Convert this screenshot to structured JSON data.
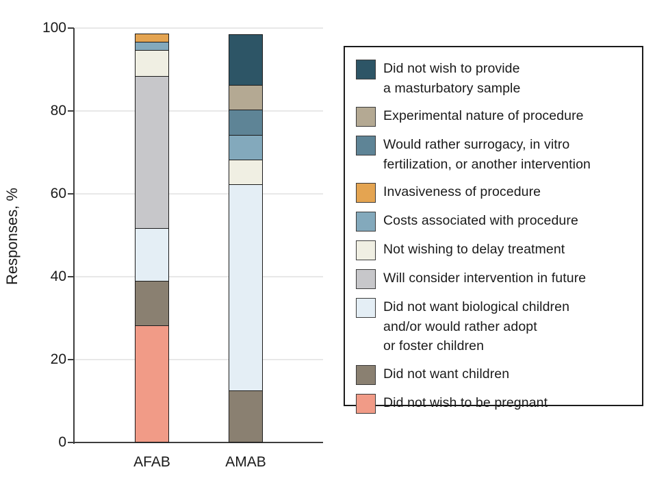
{
  "figure": {
    "y_axis_title": "Responses, %"
  },
  "chart_data": {
    "type": "bar",
    "stacked": true,
    "title": "",
    "xlabel": "",
    "ylabel": "Responses, %",
    "ylim": [
      0,
      100
    ],
    "yticks": [
      0,
      20,
      40,
      60,
      80,
      100
    ],
    "grid": true,
    "legend_position": "right",
    "categories": [
      "AFAB",
      "AMAB"
    ],
    "series": [
      {
        "name": "Did not wish to provide a masturbatory sample",
        "lines": [
          "Did not wish to provide",
          "a masturbatory sample"
        ],
        "color": "#2d5566",
        "values": [
          0,
          12.5
        ]
      },
      {
        "name": "Experimental nature of procedure",
        "lines": [
          "Experimental nature of procedure"
        ],
        "color": "#b4a993",
        "values": [
          0,
          6.25
        ]
      },
      {
        "name": "Would rather surrogacy, in vitro fertilization, or another intervention",
        "lines": [
          "Would rather surrogacy, in vitro",
          "fertilization, or another intervention"
        ],
        "color": "#5e8496",
        "values": [
          0,
          6.25
        ]
      },
      {
        "name": "Invasiveness of procedure",
        "lines": [
          "Invasiveness of procedure"
        ],
        "color": "#e4a451",
        "values": [
          2.2,
          0
        ]
      },
      {
        "name": "Costs associated with procedure",
        "lines": [
          "Costs associated with procedure"
        ],
        "color": "#83a9bc",
        "values": [
          2.2,
          6.25
        ]
      },
      {
        "name": "Not wishing to delay treatment",
        "lines": [
          "Not wishing to delay treatment"
        ],
        "color": "#f0efe3",
        "values": [
          6.5,
          6.25
        ]
      },
      {
        "name": "Will consider intervention in future",
        "lines": [
          "Will consider intervention in future"
        ],
        "color": "#c7c7ca",
        "values": [
          37.0,
          0
        ]
      },
      {
        "name": "Did not want biological children and/or would rather adopt or foster children",
        "lines": [
          "Did not want biological children",
          "and/or would rather adopt",
          "or foster children"
        ],
        "color": "#e4eef5",
        "values": [
          13.0,
          50.0
        ]
      },
      {
        "name": "Did not want children",
        "lines": [
          "Did not want children"
        ],
        "color": "#8a8071",
        "values": [
          10.9,
          12.5
        ]
      },
      {
        "name": "Did not wish to be pregnant",
        "lines": [
          "Did not wish to be pregnant"
        ],
        "color": "#f19b87",
        "values": [
          28.3,
          0
        ]
      }
    ]
  }
}
